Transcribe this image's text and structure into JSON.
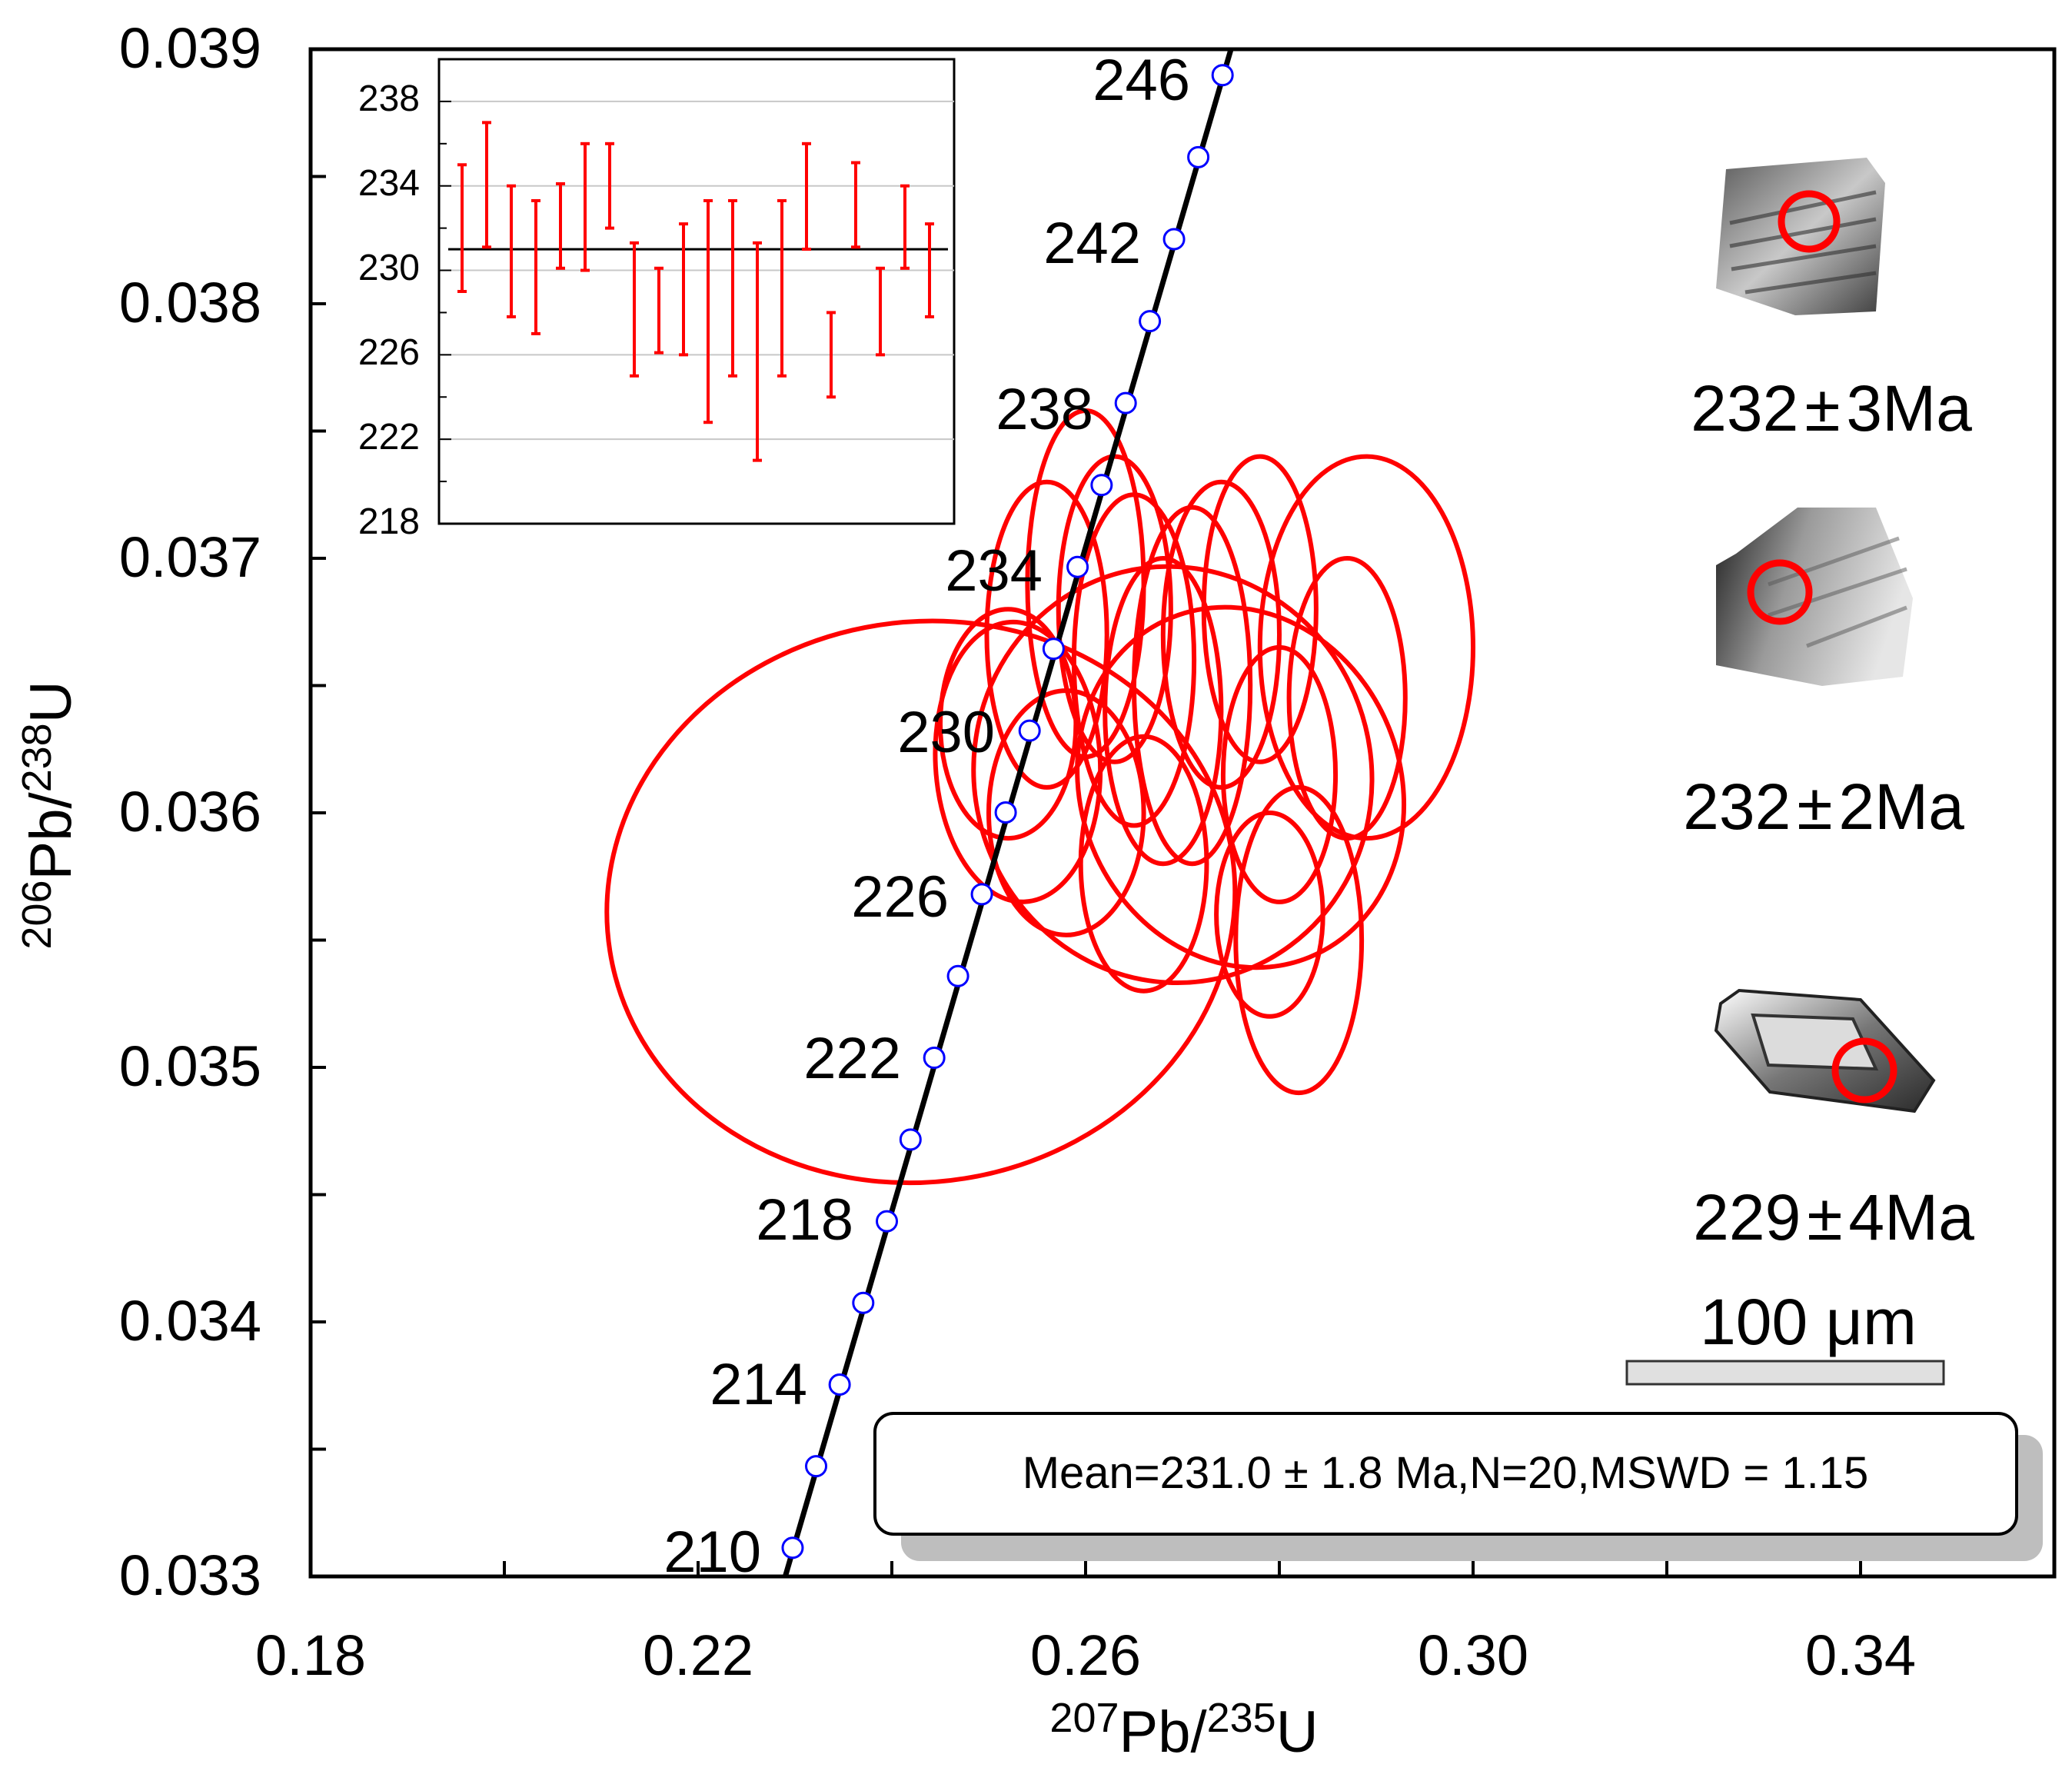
{
  "chart_data": {
    "type": "scatter",
    "subtype": "U-Pb concordia diagram with error ellipses",
    "xlabel": {
      "sup1": "207",
      "base1": "Pb/",
      "sup2": "235",
      "base2": "U"
    },
    "ylabel": {
      "sup1": "206",
      "base1": "Pb/",
      "sup2": "238",
      "base2": "U"
    },
    "xlim": [
      0.18,
      0.36
    ],
    "ylim": [
      0.033,
      0.039
    ],
    "x_ticks": [
      "0.18",
      "0.22",
      "0.26",
      "0.30",
      "0.34"
    ],
    "y_ticks": [
      "0.033",
      "0.034",
      "0.035",
      "0.036",
      "0.037",
      "0.038",
      "0.039"
    ],
    "concordia": {
      "ages_ma": [
        210,
        212,
        214,
        216,
        218,
        220,
        222,
        224,
        226,
        228,
        230,
        232,
        234,
        236,
        238,
        240,
        242,
        244,
        246
      ],
      "labeled_ages": [
        "210",
        "214",
        "218",
        "222",
        "226",
        "230",
        "234",
        "238",
        "242",
        "246"
      ]
    },
    "ellipses": [
      {
        "cx": 0.243,
        "cy": 0.03565,
        "rx": 0.0325,
        "ry": 0.0011,
        "rot": -9
      },
      {
        "cx": 0.269,
        "cy": 0.03615,
        "rx": 0.0205,
        "ry": 0.00082,
        "rot": -14
      },
      {
        "cx": 0.276,
        "cy": 0.0361,
        "rx": 0.0165,
        "ry": 0.00072,
        "rot": -22
      },
      {
        "cx": 0.253,
        "cy": 0.0362,
        "rx": 0.0085,
        "ry": 0.00055,
        "rot": -3
      },
      {
        "cx": 0.258,
        "cy": 0.036,
        "rx": 0.008,
        "ry": 0.00048,
        "rot": 0
      },
      {
        "cx": 0.252,
        "cy": 0.03635,
        "rx": 0.007,
        "ry": 0.00045,
        "rot": 0
      },
      {
        "cx": 0.256,
        "cy": 0.0367,
        "rx": 0.0062,
        "ry": 0.0006,
        "rot": 0
      },
      {
        "cx": 0.26,
        "cy": 0.0369,
        "rx": 0.006,
        "ry": 0.00068,
        "rot": 0
      },
      {
        "cx": 0.263,
        "cy": 0.0368,
        "rx": 0.0058,
        "ry": 0.0006,
        "rot": 0
      },
      {
        "cx": 0.265,
        "cy": 0.0366,
        "rx": 0.0062,
        "ry": 0.00065,
        "rot": 0
      },
      {
        "cx": 0.268,
        "cy": 0.0364,
        "rx": 0.006,
        "ry": 0.0006,
        "rot": 0
      },
      {
        "cx": 0.271,
        "cy": 0.0365,
        "rx": 0.006,
        "ry": 0.0007,
        "rot": 0
      },
      {
        "cx": 0.274,
        "cy": 0.0367,
        "rx": 0.006,
        "ry": 0.0006,
        "rot": 0
      },
      {
        "cx": 0.278,
        "cy": 0.0368,
        "rx": 0.0058,
        "ry": 0.0006,
        "rot": 0
      },
      {
        "cx": 0.28,
        "cy": 0.03615,
        "rx": 0.0058,
        "ry": 0.0005,
        "rot": 0
      },
      {
        "cx": 0.266,
        "cy": 0.0358,
        "rx": 0.0065,
        "ry": 0.0005,
        "rot": 0
      },
      {
        "cx": 0.282,
        "cy": 0.0355,
        "rx": 0.0065,
        "ry": 0.0006,
        "rot": 0
      },
      {
        "cx": 0.287,
        "cy": 0.03645,
        "rx": 0.006,
        "ry": 0.00055,
        "rot": 0
      },
      {
        "cx": 0.289,
        "cy": 0.03665,
        "rx": 0.011,
        "ry": 0.00075,
        "rot": 0
      },
      {
        "cx": 0.279,
        "cy": 0.0356,
        "rx": 0.0055,
        "ry": 0.0004,
        "rot": 0
      }
    ],
    "inset": {
      "type": "weighted-mean",
      "ylim": [
        218,
        240
      ],
      "y_ticks": [
        "218",
        "222",
        "226",
        "230",
        "234",
        "238"
      ],
      "mean": 231.0,
      "bars": [
        [
          229.0,
          235.0
        ],
        [
          231.1,
          237.0
        ],
        [
          227.8,
          234.0
        ],
        [
          227.0,
          233.3
        ],
        [
          230.1,
          234.1
        ],
        [
          230.0,
          236.0
        ],
        [
          232.0,
          236.0
        ],
        [
          225.0,
          231.3
        ],
        [
          226.1,
          230.1
        ],
        [
          226.0,
          232.2
        ],
        [
          222.8,
          233.3
        ],
        [
          225.0,
          233.3
        ],
        [
          221.0,
          231.3
        ],
        [
          225.0,
          233.3
        ],
        [
          231.0,
          236.0
        ],
        [
          224.0,
          228.0
        ],
        [
          231.1,
          235.1
        ],
        [
          226.0,
          230.1
        ],
        [
          230.1,
          234.0
        ],
        [
          227.8,
          232.2
        ]
      ]
    },
    "zircon_ages": [
      {
        "value": "232",
        "pm": "±",
        "err": "3Ma"
      },
      {
        "value": "232",
        "pm": "±",
        "err": "2Ma"
      },
      {
        "value": "229",
        "pm": "±",
        "err": "4Ma"
      }
    ],
    "scale_bar": "100 μm",
    "legend": "Mean=231.0 ± 1.8 Ma,N=20,MSWD = 1.15",
    "colors": {
      "ellipse": "#ff0000",
      "concordia": "#000000",
      "age_marker": "#0000ff",
      "inset_bar": "#ff0000"
    }
  }
}
